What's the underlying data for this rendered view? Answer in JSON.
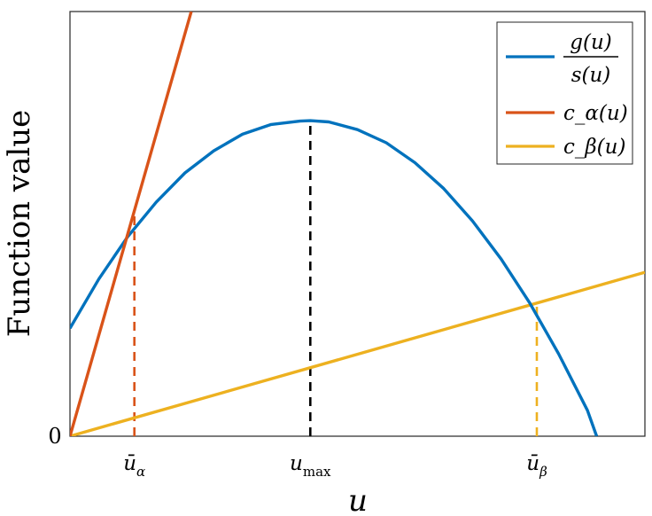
{
  "chart_data": {
    "type": "line",
    "title": "",
    "xlabel": "u",
    "ylabel": "Function value",
    "xlim": [
      0,
      1
    ],
    "ylim": [
      0,
      1
    ],
    "y_tick_labels": [
      "0"
    ],
    "x_tick_labels": [
      {
        "base": "ū",
        "sub": "α",
        "x": 0.112
      },
      {
        "base": "u",
        "sub": "max",
        "x": 0.418
      },
      {
        "base": "ū",
        "sub": "β",
        "x": 0.812
      }
    ],
    "series": [
      {
        "name": "g(u) / s(u)",
        "color": "#0072BD",
        "style": "solid",
        "x": [
          0,
          0.05,
          0.1,
          0.15,
          0.2,
          0.25,
          0.3,
          0.35,
          0.4,
          0.418,
          0.45,
          0.5,
          0.55,
          0.6,
          0.65,
          0.7,
          0.75,
          0.8,
          0.85,
          0.9,
          0.916
        ],
        "y": [
          0.254,
          0.37,
          0.469,
          0.551,
          0.62,
          0.672,
          0.711,
          0.734,
          0.742,
          0.743,
          0.74,
          0.722,
          0.691,
          0.644,
          0.583,
          0.507,
          0.417,
          0.313,
          0.194,
          0.061,
          0
        ]
      },
      {
        "name": "c_α(u)",
        "color": "#D95319",
        "style": "solid",
        "x": [
          0,
          0.211
        ],
        "y": [
          0,
          1.0
        ]
      },
      {
        "name": "c_β(u)",
        "color": "#EDB120",
        "style": "solid",
        "x": [
          0,
          1
        ],
        "y": [
          0,
          0.386
        ]
      }
    ],
    "reference_lines": [
      {
        "x": 0.112,
        "y_top": 0.53,
        "color": "#D95319",
        "style": "dashed"
      },
      {
        "x": 0.418,
        "y_top": 0.743,
        "color": "#000000",
        "style": "dashed"
      },
      {
        "x": 0.812,
        "y_top": 0.312,
        "color": "#EDB120",
        "style": "dashed"
      }
    ],
    "legend": {
      "position": "top-right",
      "entries": [
        {
          "num": "g(u)",
          "den": "s(u)",
          "color": "#0072BD"
        },
        {
          "label": "c_α(u)",
          "color": "#D95319"
        },
        {
          "label": "c_β(u)",
          "color": "#EDB120"
        }
      ]
    },
    "grid": false
  }
}
